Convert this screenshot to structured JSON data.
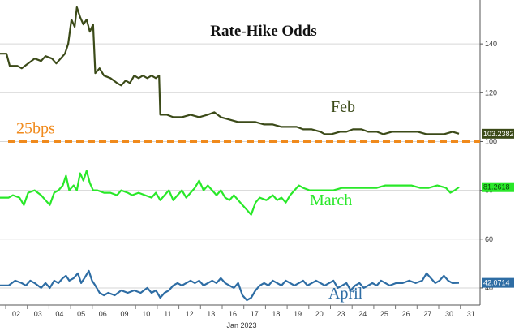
{
  "chart_data": {
    "type": "line",
    "title": "Rate-Hike Odds",
    "xlabel": "Jan 2023",
    "ylabel": "",
    "x_ticks": [
      "02",
      "03",
      "04",
      "05",
      "06",
      "09",
      "10",
      "11",
      "12",
      "13",
      "16",
      "17",
      "18",
      "19",
      "20",
      "23",
      "24",
      "25",
      "26",
      "27",
      "30",
      "31"
    ],
    "y_ticks": [
      40,
      60,
      80,
      100,
      120,
      140
    ],
    "ylim": [
      33,
      158
    ],
    "reference_line": {
      "label": "25bps",
      "value": 100,
      "color": "#f08a1c"
    },
    "series": [
      {
        "name": "Feb",
        "color": "#3b4a18",
        "last_value": "103.2382",
        "points": [
          [
            0,
            136
          ],
          [
            0.3,
            136
          ],
          [
            0.45,
            131
          ],
          [
            0.8,
            131
          ],
          [
            1.0,
            130
          ],
          [
            1.3,
            132
          ],
          [
            1.6,
            134
          ],
          [
            1.9,
            133
          ],
          [
            2.1,
            135
          ],
          [
            2.4,
            134
          ],
          [
            2.6,
            132
          ],
          [
            2.8,
            134
          ],
          [
            3.0,
            136
          ],
          [
            3.15,
            140
          ],
          [
            3.3,
            150
          ],
          [
            3.45,
            147
          ],
          [
            3.55,
            155
          ],
          [
            3.7,
            151
          ],
          [
            3.85,
            148
          ],
          [
            4.0,
            150
          ],
          [
            4.15,
            145
          ],
          [
            4.3,
            148
          ],
          [
            4.4,
            128
          ],
          [
            4.6,
            130
          ],
          [
            4.8,
            127
          ],
          [
            5.1,
            126
          ],
          [
            5.4,
            124
          ],
          [
            5.6,
            123
          ],
          [
            5.8,
            125
          ],
          [
            6.0,
            124
          ],
          [
            6.2,
            127
          ],
          [
            6.4,
            126
          ],
          [
            6.6,
            127
          ],
          [
            6.8,
            126
          ],
          [
            7.0,
            127
          ],
          [
            7.2,
            126
          ],
          [
            7.35,
            127
          ],
          [
            7.4,
            111
          ],
          [
            7.7,
            111
          ],
          [
            8.0,
            110
          ],
          [
            8.4,
            110
          ],
          [
            8.8,
            111
          ],
          [
            9.2,
            110
          ],
          [
            9.6,
            111
          ],
          [
            9.9,
            112
          ],
          [
            10.2,
            110
          ],
          [
            10.6,
            109
          ],
          [
            11.0,
            108
          ],
          [
            11.4,
            108
          ],
          [
            11.8,
            108
          ],
          [
            12.2,
            107
          ],
          [
            12.6,
            107
          ],
          [
            13.0,
            106
          ],
          [
            13.4,
            106
          ],
          [
            13.7,
            106
          ],
          [
            14.0,
            105
          ],
          [
            14.4,
            105
          ],
          [
            14.8,
            104
          ],
          [
            15.0,
            103
          ],
          [
            15.3,
            103
          ],
          [
            15.7,
            104
          ],
          [
            16.0,
            104
          ],
          [
            16.3,
            105
          ],
          [
            16.7,
            105
          ],
          [
            17.0,
            104
          ],
          [
            17.4,
            104
          ],
          [
            17.7,
            103
          ],
          [
            18.1,
            104
          ],
          [
            18.5,
            104
          ],
          [
            18.9,
            104
          ],
          [
            19.3,
            104
          ],
          [
            19.7,
            103
          ],
          [
            20.1,
            103
          ],
          [
            20.5,
            103
          ],
          [
            20.9,
            104
          ],
          [
            21.2,
            103.2
          ]
        ]
      },
      {
        "name": "March",
        "color": "#29e829",
        "last_value": "81.2618",
        "points": [
          [
            0,
            77
          ],
          [
            0.4,
            77
          ],
          [
            0.6,
            78
          ],
          [
            0.9,
            77
          ],
          [
            1.1,
            74
          ],
          [
            1.3,
            79
          ],
          [
            1.6,
            80
          ],
          [
            1.9,
            78
          ],
          [
            2.1,
            76
          ],
          [
            2.3,
            74
          ],
          [
            2.5,
            79
          ],
          [
            2.7,
            80
          ],
          [
            2.9,
            82
          ],
          [
            3.05,
            86
          ],
          [
            3.2,
            80
          ],
          [
            3.4,
            82
          ],
          [
            3.55,
            80
          ],
          [
            3.7,
            87
          ],
          [
            3.85,
            84
          ],
          [
            4.0,
            88
          ],
          [
            4.15,
            83
          ],
          [
            4.3,
            80
          ],
          [
            4.5,
            80
          ],
          [
            4.8,
            79
          ],
          [
            5.1,
            79
          ],
          [
            5.4,
            78
          ],
          [
            5.6,
            80
          ],
          [
            5.9,
            79
          ],
          [
            6.1,
            78
          ],
          [
            6.4,
            79
          ],
          [
            6.7,
            78
          ],
          [
            7.0,
            77
          ],
          [
            7.2,
            79
          ],
          [
            7.4,
            76
          ],
          [
            7.6,
            78
          ],
          [
            7.8,
            80
          ],
          [
            8.0,
            76
          ],
          [
            8.2,
            78
          ],
          [
            8.4,
            80
          ],
          [
            8.6,
            77
          ],
          [
            8.8,
            79
          ],
          [
            9.0,
            81
          ],
          [
            9.2,
            84
          ],
          [
            9.4,
            80
          ],
          [
            9.6,
            82
          ],
          [
            9.8,
            80
          ],
          [
            10.0,
            78
          ],
          [
            10.2,
            80
          ],
          [
            10.4,
            77
          ],
          [
            10.6,
            76
          ],
          [
            10.8,
            78
          ],
          [
            11.0,
            76
          ],
          [
            11.2,
            74
          ],
          [
            11.4,
            72
          ],
          [
            11.6,
            70
          ],
          [
            11.8,
            75
          ],
          [
            12.0,
            77
          ],
          [
            12.3,
            76
          ],
          [
            12.6,
            78
          ],
          [
            12.8,
            76
          ],
          [
            13.0,
            77
          ],
          [
            13.2,
            75
          ],
          [
            13.4,
            78
          ],
          [
            13.6,
            80
          ],
          [
            13.8,
            82
          ],
          [
            14.0,
            81
          ],
          [
            14.3,
            80
          ],
          [
            14.6,
            80
          ],
          [
            15.0,
            80
          ],
          [
            15.4,
            80
          ],
          [
            15.8,
            81
          ],
          [
            16.2,
            81
          ],
          [
            16.6,
            81
          ],
          [
            17.0,
            81
          ],
          [
            17.4,
            81
          ],
          [
            17.8,
            82
          ],
          [
            18.2,
            82
          ],
          [
            18.6,
            82
          ],
          [
            19.0,
            82
          ],
          [
            19.4,
            81
          ],
          [
            19.8,
            81
          ],
          [
            20.2,
            82
          ],
          [
            20.6,
            81
          ],
          [
            20.8,
            79
          ],
          [
            21.0,
            80
          ],
          [
            21.2,
            81.3
          ]
        ]
      },
      {
        "name": "April",
        "color": "#2e6da4",
        "last_value": "42.0714",
        "points": [
          [
            0,
            41
          ],
          [
            0.4,
            41
          ],
          [
            0.7,
            43
          ],
          [
            1.0,
            42
          ],
          [
            1.2,
            41
          ],
          [
            1.4,
            43
          ],
          [
            1.6,
            42
          ],
          [
            1.9,
            40
          ],
          [
            2.1,
            42
          ],
          [
            2.3,
            40
          ],
          [
            2.5,
            43
          ],
          [
            2.7,
            42
          ],
          [
            2.9,
            44
          ],
          [
            3.05,
            45
          ],
          [
            3.2,
            43
          ],
          [
            3.4,
            44
          ],
          [
            3.6,
            46
          ],
          [
            3.75,
            42
          ],
          [
            3.9,
            44
          ],
          [
            4.1,
            47
          ],
          [
            4.25,
            43
          ],
          [
            4.4,
            41
          ],
          [
            4.6,
            38
          ],
          [
            4.8,
            37
          ],
          [
            5.0,
            38
          ],
          [
            5.3,
            37
          ],
          [
            5.6,
            39
          ],
          [
            5.9,
            38
          ],
          [
            6.2,
            39
          ],
          [
            6.5,
            38
          ],
          [
            6.8,
            40
          ],
          [
            7.0,
            38
          ],
          [
            7.2,
            39
          ],
          [
            7.4,
            36
          ],
          [
            7.6,
            38
          ],
          [
            7.8,
            39
          ],
          [
            8.0,
            41
          ],
          [
            8.2,
            42
          ],
          [
            8.4,
            41
          ],
          [
            8.6,
            42
          ],
          [
            8.8,
            43
          ],
          [
            9.0,
            42
          ],
          [
            9.2,
            43
          ],
          [
            9.4,
            41
          ],
          [
            9.6,
            42
          ],
          [
            9.8,
            43
          ],
          [
            10.0,
            42
          ],
          [
            10.2,
            44
          ],
          [
            10.4,
            42
          ],
          [
            10.6,
            41
          ],
          [
            10.8,
            40
          ],
          [
            11.0,
            42
          ],
          [
            11.2,
            37
          ],
          [
            11.4,
            35
          ],
          [
            11.6,
            36
          ],
          [
            11.8,
            39
          ],
          [
            12.0,
            41
          ],
          [
            12.2,
            42
          ],
          [
            12.4,
            41
          ],
          [
            12.6,
            43
          ],
          [
            12.8,
            42
          ],
          [
            13.0,
            41
          ],
          [
            13.2,
            43
          ],
          [
            13.4,
            42
          ],
          [
            13.6,
            41
          ],
          [
            13.8,
            42
          ],
          [
            14.0,
            43
          ],
          [
            14.2,
            41
          ],
          [
            14.4,
            42
          ],
          [
            14.6,
            43
          ],
          [
            14.8,
            42
          ],
          [
            15.0,
            41
          ],
          [
            15.2,
            42
          ],
          [
            15.4,
            43
          ],
          [
            15.6,
            40
          ],
          [
            15.8,
            41
          ],
          [
            16.0,
            42
          ],
          [
            16.2,
            39
          ],
          [
            16.4,
            41
          ],
          [
            16.6,
            42
          ],
          [
            16.8,
            40
          ],
          [
            17.0,
            41
          ],
          [
            17.2,
            42
          ],
          [
            17.4,
            41
          ],
          [
            17.6,
            43
          ],
          [
            17.8,
            42
          ],
          [
            18.0,
            41
          ],
          [
            18.3,
            42
          ],
          [
            18.6,
            42
          ],
          [
            18.9,
            43
          ],
          [
            19.2,
            42
          ],
          [
            19.5,
            43
          ],
          [
            19.7,
            46
          ],
          [
            19.9,
            44
          ],
          [
            20.1,
            42
          ],
          [
            20.3,
            43
          ],
          [
            20.5,
            45
          ],
          [
            20.7,
            43
          ],
          [
            20.9,
            42
          ],
          [
            21.2,
            42.1
          ]
        ]
      }
    ]
  }
}
